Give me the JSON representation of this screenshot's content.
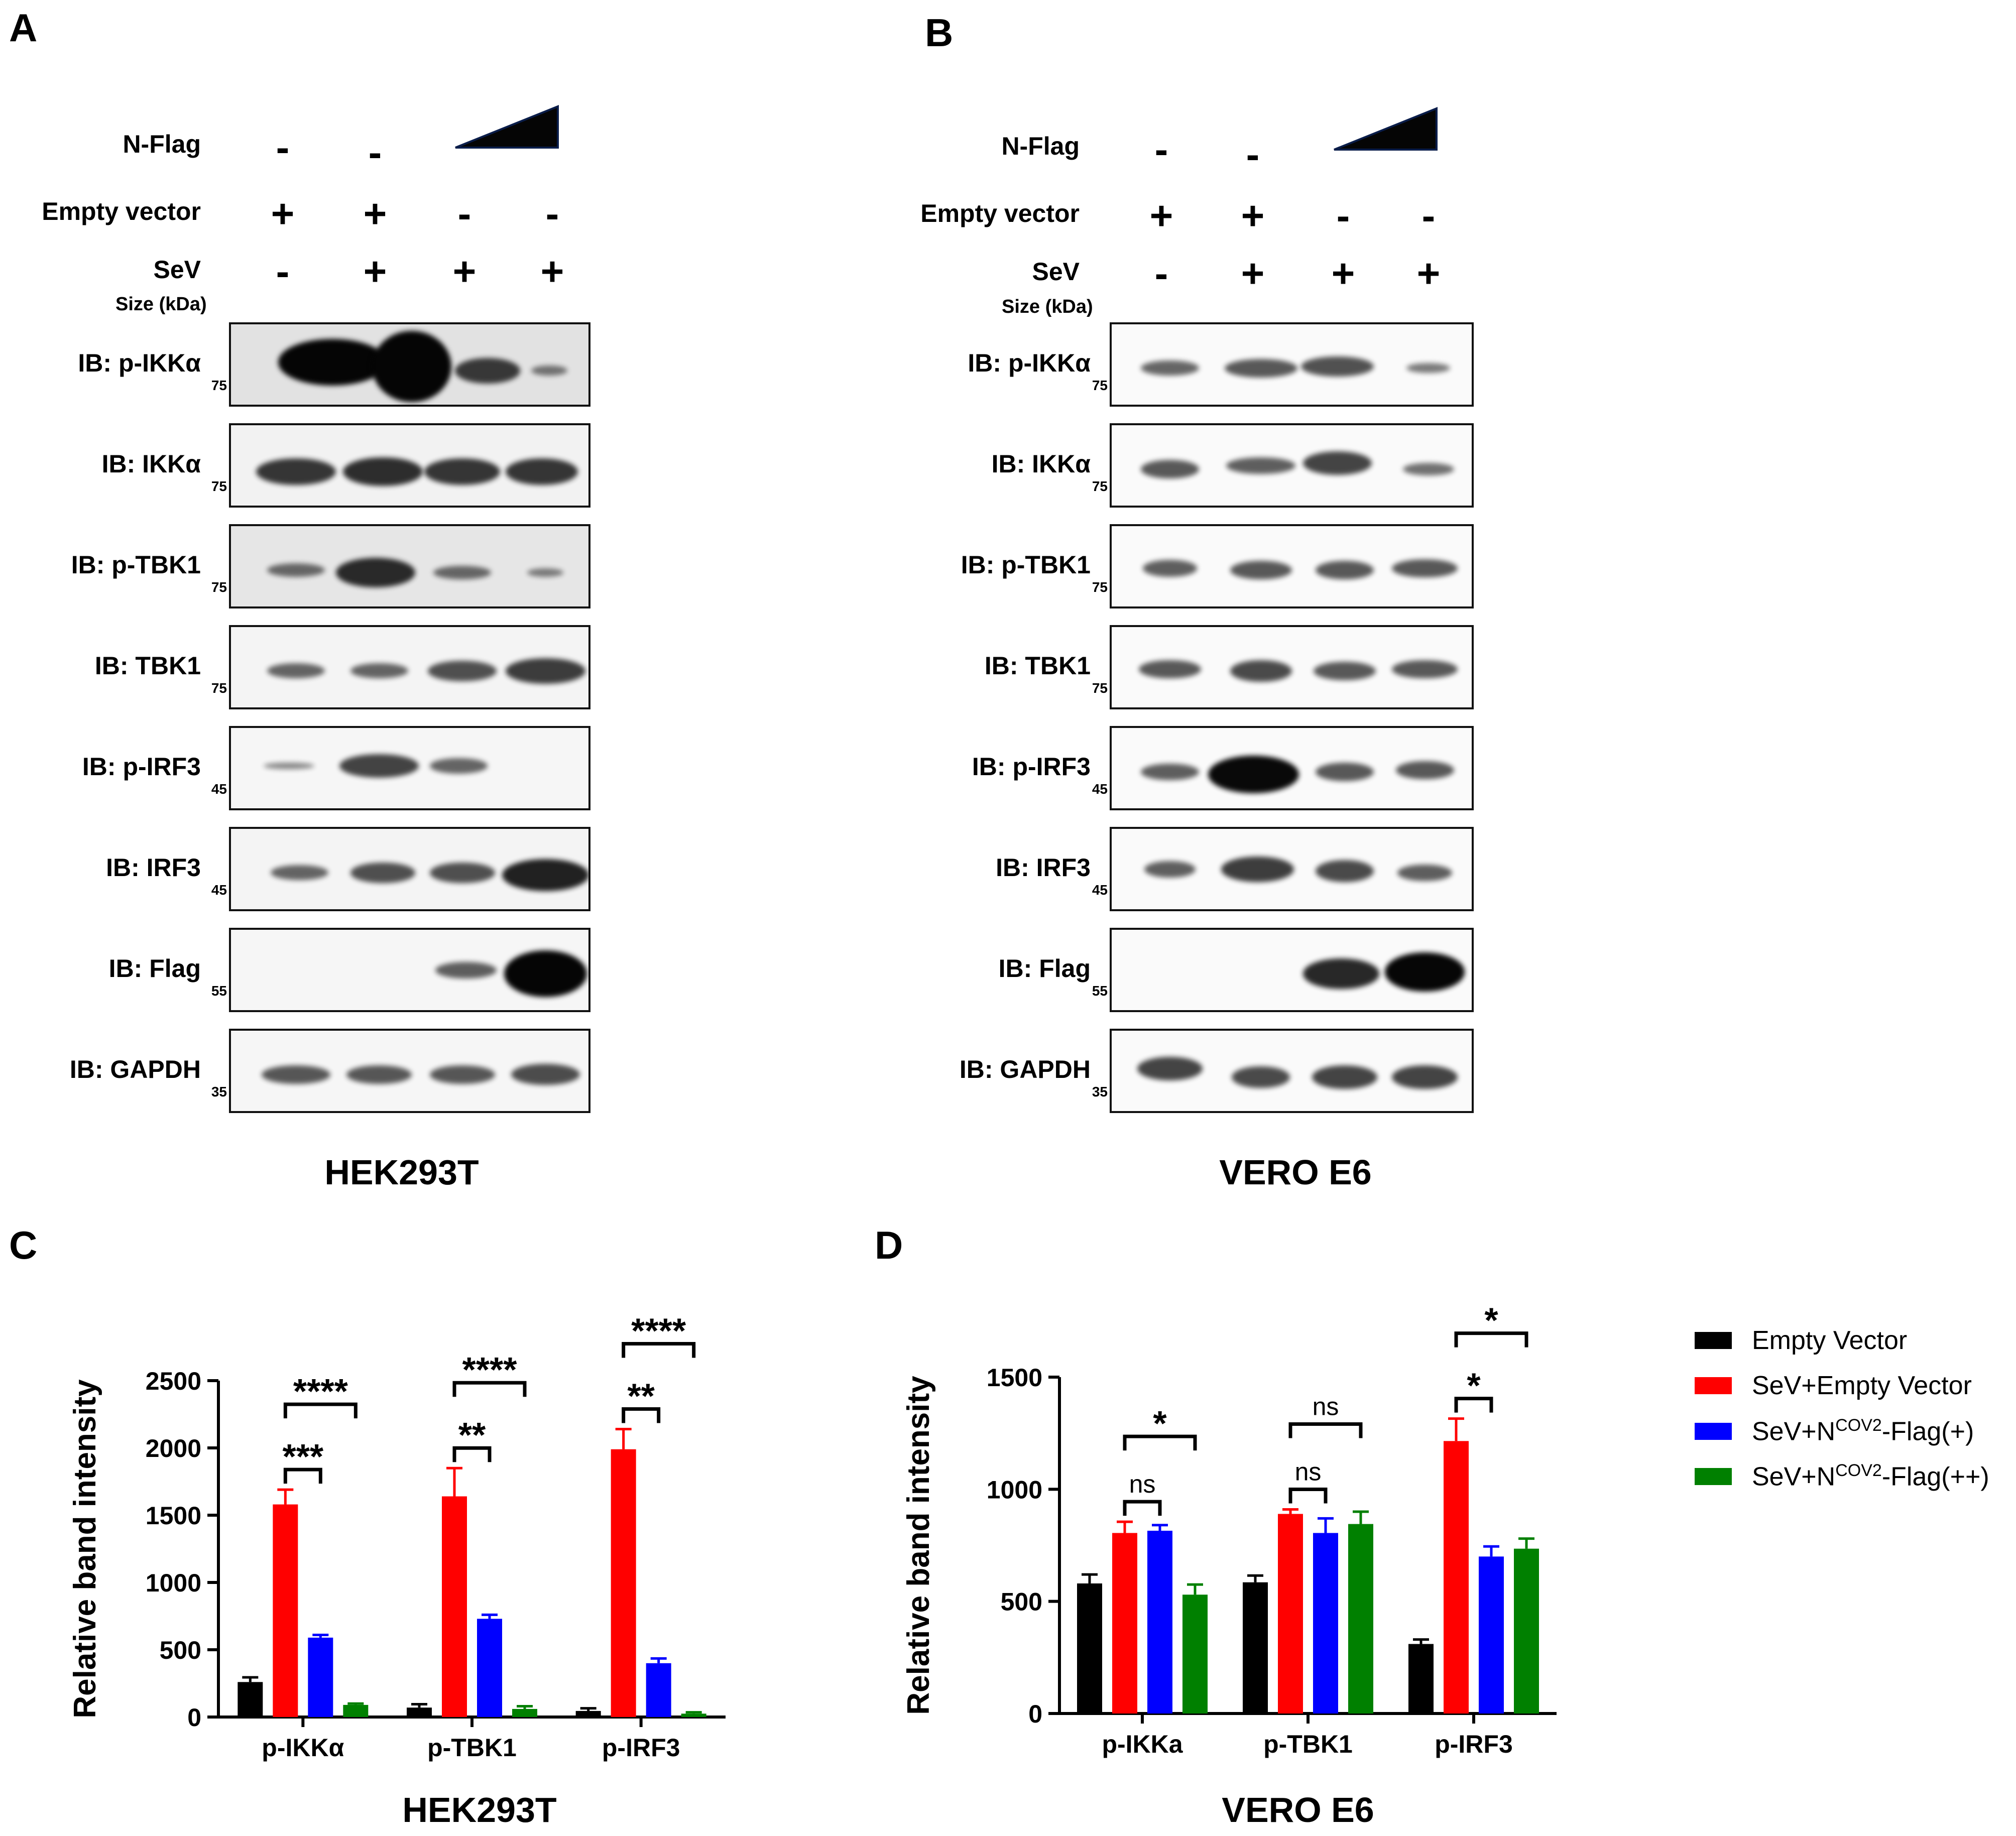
{
  "panels": {
    "A": {
      "label": "A",
      "cell_line": "HEK293T",
      "treatments": {
        "nflag": {
          "label": "N-Flag",
          "symbols": [
            "-",
            "-"
          ]
        },
        "empty": {
          "label": "Empty vector",
          "symbols": [
            "+",
            "+",
            "-",
            "-"
          ]
        },
        "sev": {
          "label": "SeV",
          "symbols": [
            "-",
            "+",
            "+",
            "+"
          ]
        }
      },
      "size_label": "Size (kDa)",
      "blots": [
        {
          "label": "IB: p-IKKα",
          "mw": "75"
        },
        {
          "label": "IB: IKKα",
          "mw": "75"
        },
        {
          "label": "IB: p-TBK1",
          "mw": "75"
        },
        {
          "label": "IB: TBK1",
          "mw": "75"
        },
        {
          "label": "IB: p-IRF3",
          "mw": "45"
        },
        {
          "label": "IB: IRF3",
          "mw": "45"
        },
        {
          "label": "IB: Flag",
          "mw": "55"
        },
        {
          "label": "IB: GAPDH",
          "mw": "35"
        }
      ]
    },
    "B": {
      "label": "B",
      "cell_line": "VERO E6",
      "treatments": {
        "nflag": {
          "label": "N-Flag",
          "symbols": [
            "-",
            "-"
          ]
        },
        "empty": {
          "label": "Empty vector",
          "symbols": [
            "+",
            "+",
            "-",
            "-"
          ]
        },
        "sev": {
          "label": "SeV",
          "symbols": [
            "-",
            "+",
            "+",
            "+"
          ]
        }
      },
      "size_label": "Size (kDa)",
      "blots": [
        {
          "label": "IB: p-IKKα",
          "mw": "75"
        },
        {
          "label": "IB: IKKα",
          "mw": "75"
        },
        {
          "label": "IB: p-TBK1",
          "mw": "75"
        },
        {
          "label": "IB: TBK1",
          "mw": "75"
        },
        {
          "label": "IB: p-IRF3",
          "mw": "45"
        },
        {
          "label": "IB: IRF3",
          "mw": "45"
        },
        {
          "label": "IB: Flag",
          "mw": "55"
        },
        {
          "label": "IB: GAPDH",
          "mw": "35"
        }
      ]
    },
    "C": {
      "label": "C",
      "title": "HEK293T"
    },
    "D": {
      "label": "D",
      "title": "VERO E6"
    }
  },
  "legend": [
    {
      "text": "Empty Vector",
      "sup": "",
      "suffix": "",
      "color": "#000000"
    },
    {
      "text": "SeV+Empty Vector",
      "sup": "",
      "suffix": "",
      "color": "#ff0000"
    },
    {
      "text": "SeV+N",
      "sup": "COV2",
      "suffix": "-Flag(+)",
      "color": "#0000ff"
    },
    {
      "text": "SeV+N",
      "sup": "COV2",
      "suffix": "-Flag(++)",
      "color": "#008000"
    }
  ],
  "chart_data": [
    {
      "type": "bar",
      "title": "HEK293T",
      "ylabel": "Relative band intensity",
      "ylim": [
        0,
        2500
      ],
      "yticks": [
        0,
        500,
        1000,
        1500,
        2000,
        2500
      ],
      "categories": [
        "p-IKKα",
        "p-TBK1",
        "p-IRF3"
      ],
      "series": [
        {
          "name": "Empty Vector",
          "color": "#000000",
          "values": [
            260,
            70,
            45
          ],
          "errors": [
            35,
            25,
            20
          ]
        },
        {
          "name": "SeV+Empty Vector",
          "color": "#ff0000",
          "values": [
            1580,
            1640,
            1990
          ],
          "errors": [
            110,
            210,
            150
          ]
        },
        {
          "name": "SeV+NCOV2-Flag(+)",
          "color": "#0000ff",
          "values": [
            590,
            730,
            400
          ],
          "errors": [
            20,
            30,
            35
          ]
        },
        {
          "name": "SeV+NCOV2-Flag(++)",
          "color": "#008000",
          "values": [
            90,
            60,
            25
          ],
          "errors": [
            10,
            20,
            10
          ]
        }
      ],
      "significance": [
        {
          "group": 0,
          "from": 1,
          "to": 2,
          "label": "***"
        },
        {
          "group": 0,
          "from": 1,
          "to": 3,
          "label": "****"
        },
        {
          "group": 1,
          "from": 1,
          "to": 2,
          "label": "**"
        },
        {
          "group": 1,
          "from": 1,
          "to": 3,
          "label": "****"
        },
        {
          "group": 2,
          "from": 1,
          "to": 2,
          "label": "**"
        },
        {
          "group": 2,
          "from": 1,
          "to": 3,
          "label": "****"
        }
      ]
    },
    {
      "type": "bar",
      "title": "VERO E6",
      "ylabel": "Relative band intensity",
      "ylim": [
        0,
        1500
      ],
      "yticks": [
        0,
        500,
        1000,
        1500
      ],
      "categories": [
        "p-IKKa",
        "p-TBK1",
        "p-IRF3"
      ],
      "series": [
        {
          "name": "Empty Vector",
          "color": "#000000",
          "values": [
            580,
            585,
            310
          ],
          "errors": [
            40,
            30,
            20
          ]
        },
        {
          "name": "SeV+Empty Vector",
          "color": "#ff0000",
          "values": [
            805,
            890,
            1215
          ],
          "errors": [
            50,
            20,
            100
          ]
        },
        {
          "name": "SeV+NCOV2-Flag(+)",
          "color": "#0000ff",
          "values": [
            815,
            805,
            700
          ],
          "errors": [
            25,
            65,
            45
          ]
        },
        {
          "name": "SeV+NCOV2-Flag(++)",
          "color": "#008000",
          "values": [
            530,
            845,
            735
          ],
          "errors": [
            45,
            55,
            45
          ]
        }
      ],
      "significance": [
        {
          "group": 0,
          "from": 1,
          "to": 2,
          "label": "ns"
        },
        {
          "group": 0,
          "from": 1,
          "to": 3,
          "label": "*"
        },
        {
          "group": 1,
          "from": 1,
          "to": 2,
          "label": "ns"
        },
        {
          "group": 1,
          "from": 1,
          "to": 3,
          "label": "ns"
        },
        {
          "group": 2,
          "from": 1,
          "to": 2,
          "label": "*"
        },
        {
          "group": 2,
          "from": 1,
          "to": 3,
          "label": "*"
        }
      ]
    }
  ]
}
